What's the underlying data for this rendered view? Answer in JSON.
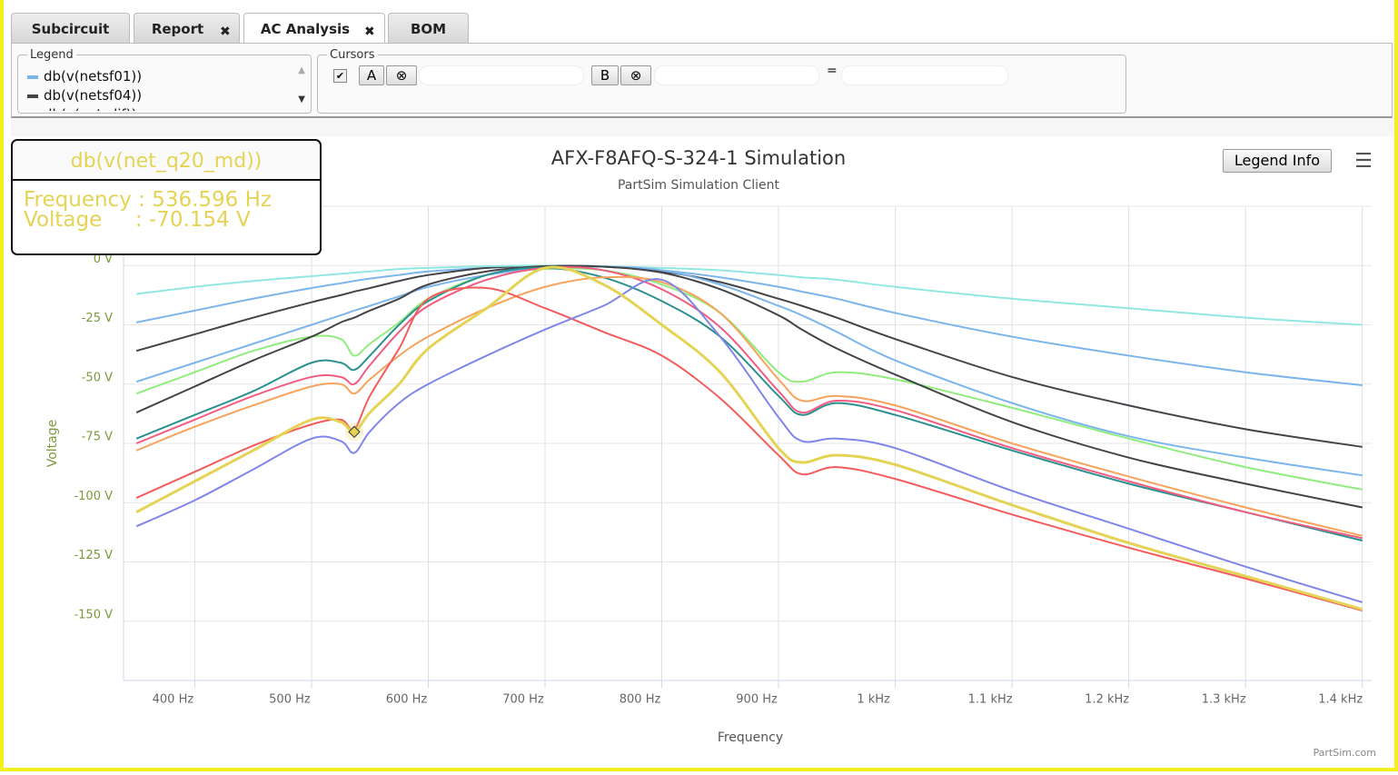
{
  "tabs": [
    "Subcircuit",
    "Report",
    "AC Analysis",
    "BOM"
  ],
  "legend_panel": {
    "title": "Legend"
  },
  "cursors": {
    "title": "Cursors",
    "button_a": "A",
    "button_b": "B",
    "equals": "="
  },
  "legend_info_button": "Legend Info",
  "tooltip": {
    "lines": [
      "Frequency : 536.596 Hz",
      "Voltage     : -70.154 V"
    ]
  },
  "chart_data": {
    "type": "line",
    "title": "AFX-F8AFQ-S-324-1 Simulation",
    "subtitle": "PartSim Simulation Client",
    "x_label": "Frequency",
    "y_label": "Voltage",
    "credit": "PartSim.com",
    "xlim": [
      339,
      1408
    ],
    "ylim": [
      -175,
      25
    ],
    "grid": true,
    "xticks": [
      {
        "value": 400,
        "label": "400 Hz"
      },
      {
        "value": 500,
        "label": "500 Hz"
      },
      {
        "value": 600,
        "label": "600 Hz"
      },
      {
        "value": 700,
        "label": "700 Hz"
      },
      {
        "value": 800,
        "label": "800 Hz"
      },
      {
        "value": 900,
        "label": "900 Hz"
      },
      {
        "value": 1000,
        "label": "1 kHz"
      },
      {
        "value": 1100,
        "label": "1.1 kHz"
      },
      {
        "value": 1200,
        "label": "1.2 kHz"
      },
      {
        "value": 1300,
        "label": "1.3 kHz"
      },
      {
        "value": 1400,
        "label": "1.4 kHz"
      }
    ],
    "yticks": [
      {
        "value": 0,
        "label": "0 V"
      },
      {
        "value": -25,
        "label": "-25 V"
      },
      {
        "value": -50,
        "label": "-50 V"
      },
      {
        "value": -75,
        "label": "-75 V"
      },
      {
        "value": -100,
        "label": "-100 V"
      },
      {
        "value": -125,
        "label": "-125 V"
      },
      {
        "value": -150,
        "label": "-150 V"
      }
    ],
    "x": [
      350,
      400,
      450,
      500,
      525,
      536.596,
      550,
      575,
      600,
      650,
      700,
      750,
      800,
      850,
      900,
      920,
      950,
      1000,
      1100,
      1200,
      1300,
      1400
    ],
    "series": [
      {
        "name": "db(v(netsf01))",
        "color": "#7cb5ec",
        "values": [
          -24,
          -19,
          -14,
          -9.5,
          -7.5,
          -6.5,
          -5.5,
          -4,
          -2.5,
          -1,
          -0.2,
          -0.5,
          -2,
          -5,
          -9,
          -11,
          -14,
          -20,
          -30,
          -38,
          -45,
          -50.5
        ]
      },
      {
        "name": "db(v(netsf04))",
        "color": "#434348",
        "values": [
          -36,
          -29,
          -22,
          -15.5,
          -12.5,
          -11,
          -9.5,
          -6.5,
          -4,
          -1,
          -0.2,
          -0.5,
          -2.5,
          -7,
          -14,
          -17,
          -22,
          -31,
          -47,
          -59,
          -69,
          -76.5
        ]
      },
      {
        "name": "db(v(net_dif))",
        "color": "#90ed7d",
        "values": [
          -54,
          -45,
          -36,
          -30,
          -31,
          -38,
          -33,
          -24,
          -14,
          -4,
          -1.5,
          -2,
          -8,
          -20,
          -45,
          -49,
          -45,
          -48,
          -60,
          -73,
          -85,
          -94.5
        ]
      },
      {
        "name": "db(v(net_q20_md))",
        "color": "#e4d354",
        "values": [
          -104,
          -91,
          -78,
          -65,
          -66,
          -70.154,
          -62,
          -50,
          -35,
          -18,
          -1,
          -8,
          -25,
          -45,
          -77,
          -83,
          -80,
          -84,
          -101,
          -117,
          -131,
          -145
        ]
      },
      {
        "color": "#91e8e1",
        "values": [
          -12,
          -9,
          -6.5,
          -4.5,
          -3.5,
          -3,
          -2.5,
          -1.5,
          -1,
          -0.3,
          0,
          -0.3,
          -1,
          -2,
          -4,
          -5,
          -6,
          -9,
          -14,
          -18,
          -22,
          -25
        ]
      },
      {
        "color": "#7cb5ec",
        "values": [
          -49,
          -41,
          -33,
          -25,
          -21,
          -19,
          -17,
          -13,
          -9,
          -4,
          -1,
          -0.5,
          -2,
          -8,
          -17,
          -21,
          -28,
          -40,
          -58,
          -72,
          -81,
          -88.5
        ]
      },
      {
        "color": "#434348",
        "values": [
          -62,
          -51,
          -40,
          -30,
          -24,
          -22,
          -19,
          -14,
          -8,
          -2.5,
          -0.3,
          -0.5,
          -3,
          -10,
          -21,
          -27,
          -35,
          -46,
          -66,
          -81,
          -92,
          -102
        ]
      },
      {
        "color": "#2b908f",
        "values": [
          -73,
          -63,
          -53,
          -41,
          -41,
          -44,
          -38,
          -25,
          -15,
          -4,
          -1,
          -5,
          -15,
          -30,
          -55,
          -63,
          -58,
          -63,
          -78,
          -92,
          -104,
          -116
        ]
      },
      {
        "color": "#f15c80",
        "values": [
          -75,
          -65,
          -55,
          -47,
          -47,
          -50,
          -42,
          -28,
          -17,
          -6,
          -1,
          -2,
          -10,
          -26,
          -53,
          -62,
          -57,
          -61,
          -77,
          -91,
          -104,
          -115
        ]
      },
      {
        "color": "#f7a35c",
        "values": [
          -78,
          -68,
          -59,
          -51,
          -50,
          -54,
          -48,
          -38,
          -30,
          -18,
          -9,
          -5,
          -7,
          -20,
          -48,
          -57,
          -55,
          -59,
          -75,
          -89,
          -102,
          -114
        ]
      },
      {
        "color": "#f45b5b",
        "values": [
          -98,
          -87,
          -76,
          -67,
          -65,
          -69,
          -55,
          -35,
          -14,
          -9.5,
          -18,
          -28,
          -38,
          -56,
          -80,
          -88,
          -85,
          -90,
          -105,
          -119,
          -132,
          -145.5
        ]
      },
      {
        "color": "#8085e9",
        "values": [
          -110,
          -99,
          -86,
          -73,
          -74,
          -79,
          -70,
          -58,
          -50,
          -38,
          -27,
          -17,
          -6,
          -30,
          -64,
          -74,
          -73,
          -77,
          -95,
          -111,
          -127,
          -142
        ]
      }
    ]
  }
}
